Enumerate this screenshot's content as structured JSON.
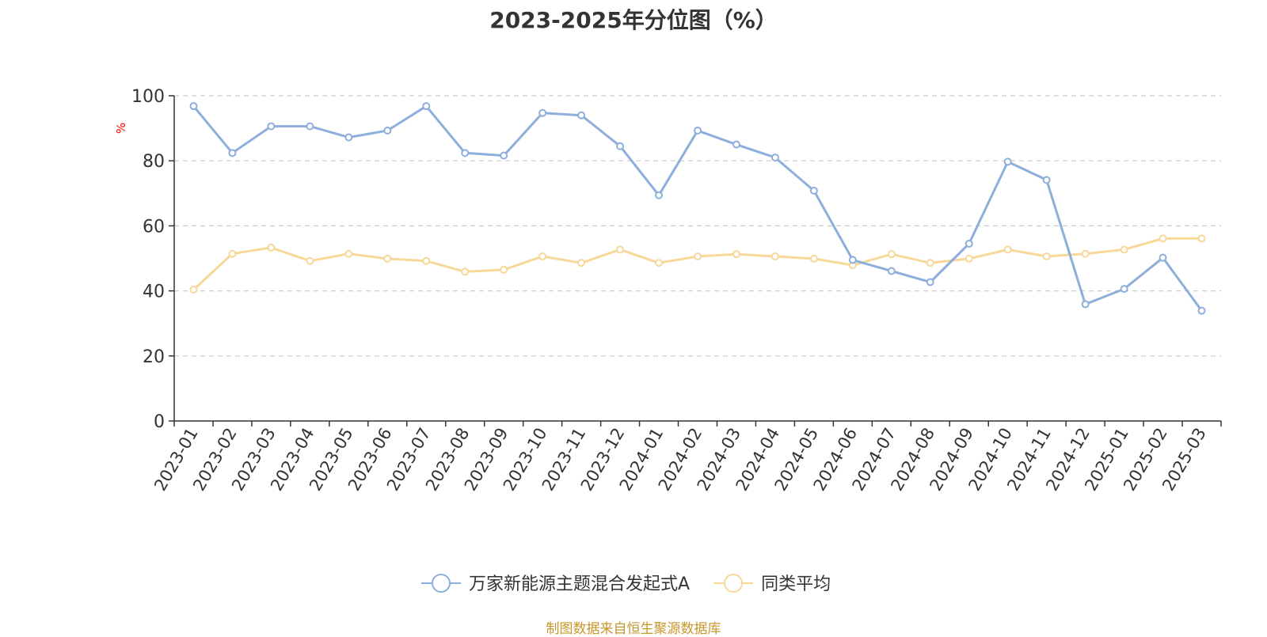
{
  "colors": {
    "series_a": "#8eaedb",
    "series_b": "#f8d898",
    "axis": "#333333",
    "grid": "#cccccc",
    "ylabel": "#ff0000",
    "source": "#c8962b"
  },
  "source_note": "制图数据来自恒生聚源数据库",
  "chart_data": {
    "type": "line",
    "title": "2023-2025年分位图（%）",
    "ylabel": "%",
    "xlabel": "",
    "ylim": [
      0,
      100
    ],
    "yticks": [
      0,
      20,
      40,
      60,
      80,
      100
    ],
    "grid": true,
    "legend_position": "bottom-center",
    "categories": [
      "2023-01",
      "2023-02",
      "2023-03",
      "2023-04",
      "2023-05",
      "2023-06",
      "2023-07",
      "2023-08",
      "2023-09",
      "2023-10",
      "2023-11",
      "2023-12",
      "2024-01",
      "2024-02",
      "2024-03",
      "2024-04",
      "2024-05",
      "2024-06",
      "2024-07",
      "2024-08",
      "2024-09",
      "2024-10",
      "2024-11",
      "2024-12",
      "2025-01",
      "2025-02",
      "2025-03"
    ],
    "series": [
      {
        "name": "万家新能源主题混合发起式A",
        "values": [
          96.8,
          82.4,
          90.6,
          90.6,
          87.2,
          89.3,
          96.8,
          82.4,
          81.6,
          94.7,
          94.0,
          84.5,
          69.4,
          89.3,
          85.0,
          81.0,
          70.8,
          49.5,
          46.1,
          42.7,
          54.5,
          79.7,
          74.1,
          35.9,
          40.6,
          50.2,
          33.9
        ]
      },
      {
        "name": "同类平均",
        "values": [
          40.4,
          51.4,
          53.3,
          49.2,
          51.4,
          49.9,
          49.2,
          45.9,
          46.5,
          50.6,
          48.6,
          52.7,
          48.6,
          50.6,
          51.3,
          50.6,
          49.9,
          47.9,
          51.3,
          48.6,
          49.9,
          52.7,
          50.6,
          51.4,
          52.7,
          56.1,
          56.1
        ]
      }
    ]
  }
}
